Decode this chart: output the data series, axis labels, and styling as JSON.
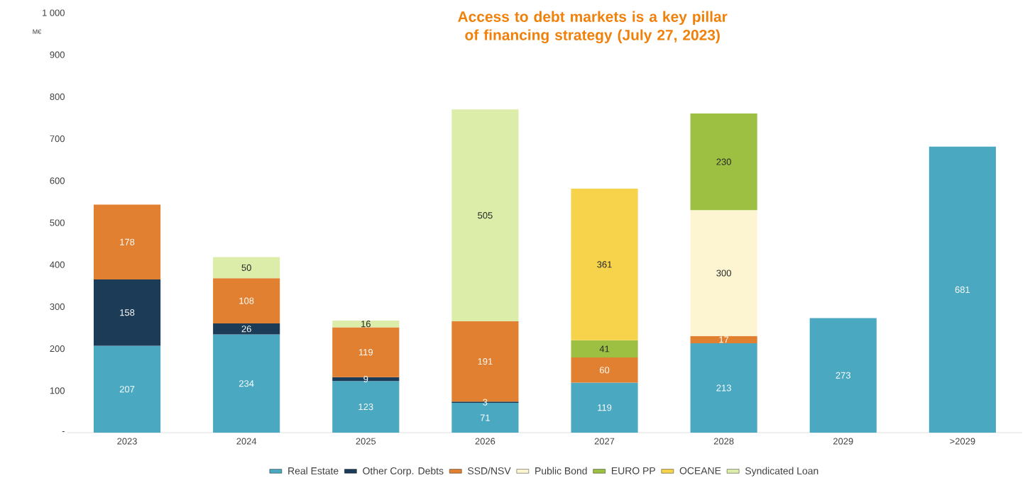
{
  "chart_data": {
    "type": "bar",
    "stacked": true,
    "title": "Access to debt markets is a key pillar of financing strategy (July 27, 2023)",
    "ylabel": "M€",
    "categories": [
      "2023",
      "2024",
      "2025",
      "2026",
      "2027",
      "2028",
      "2029",
      ">2029"
    ],
    "series": [
      {
        "name": "Real Estate",
        "color": "#4aa8c0",
        "values": [
          207,
          234,
          123,
          71,
          119,
          213,
          273,
          681
        ]
      },
      {
        "name": "Other Corp. Debts",
        "color": "#1b3b56",
        "values": [
          158,
          26,
          9,
          3,
          null,
          null,
          null,
          null
        ]
      },
      {
        "name": "SSD/NSV",
        "color": "#e08030",
        "values": [
          178,
          108,
          119,
          191,
          60,
          17,
          null,
          null
        ]
      },
      {
        "name": "Public Bond",
        "color": "#fdf5d2",
        "values": [
          null,
          null,
          null,
          null,
          null,
          300,
          null,
          null
        ]
      },
      {
        "name": "EURO PP",
        "color": "#9dbf42",
        "values": [
          null,
          null,
          null,
          null,
          41,
          230,
          null,
          null
        ]
      },
      {
        "name": "OCEANE",
        "color": "#f6d34a",
        "values": [
          null,
          null,
          null,
          null,
          361,
          null,
          null,
          null
        ]
      },
      {
        "name": "Syndicated Loan",
        "color": "#dcedaa",
        "values": [
          null,
          50,
          16,
          505,
          null,
          null,
          null,
          null
        ]
      }
    ],
    "ylim": [
      0,
      1000
    ],
    "yticks": [
      {
        "value": 0,
        "label": "-"
      },
      100,
      200,
      300,
      400,
      500,
      600,
      700,
      800,
      900,
      {
        "value": 1000,
        "label": "1 000"
      }
    ],
    "data_labels": true,
    "grid": false,
    "legend": "bottom"
  }
}
